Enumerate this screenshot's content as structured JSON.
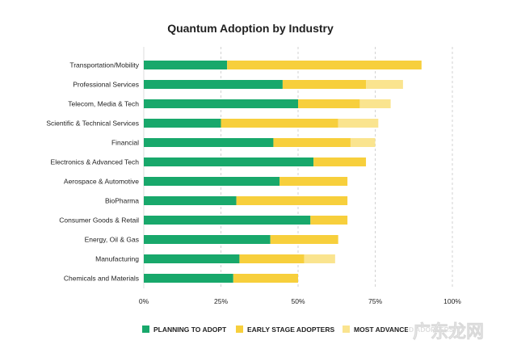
{
  "chart_data": {
    "type": "bar",
    "orientation": "horizontal",
    "stacked": true,
    "title": "Quantum Adoption by Industry",
    "xlabel": "",
    "ylabel": "",
    "xlim": [
      0,
      100
    ],
    "x_ticks": [
      "0%",
      "25%",
      "50%",
      "75%",
      "100%"
    ],
    "grid": true,
    "legend_position": "bottom",
    "categories": [
      "Transportation/Mobility",
      "Professional Services",
      "Telecom, Media & Tech",
      "Scientific & Technical Services",
      "Financial",
      "Electronics & Advanced Tech",
      "Aerospace & Automotive",
      "BioPharma",
      "Consumer Goods & Retail",
      "Energy, Oil & Gas",
      "Manufacturing",
      "Chemicals and Materials"
    ],
    "series": [
      {
        "name": "PLANNING TO ADOPT",
        "color": "#18a86b",
        "values": [
          27,
          45,
          50,
          25,
          42,
          55,
          44,
          30,
          54,
          41,
          31,
          29
        ]
      },
      {
        "name": "EARLY STAGE ADOPTERS",
        "color": "#f7cf3c",
        "values": [
          63,
          27,
          20,
          38,
          25,
          17,
          22,
          36,
          12,
          22,
          21,
          21
        ]
      },
      {
        "name": "MOST ADVANCED ADOPTERS",
        "color": "#fae48f",
        "values": [
          0,
          12,
          10,
          13,
          8,
          0,
          0,
          0,
          0,
          0,
          10,
          0
        ]
      }
    ]
  },
  "watermark": {
    "text": "广东龙网"
  }
}
